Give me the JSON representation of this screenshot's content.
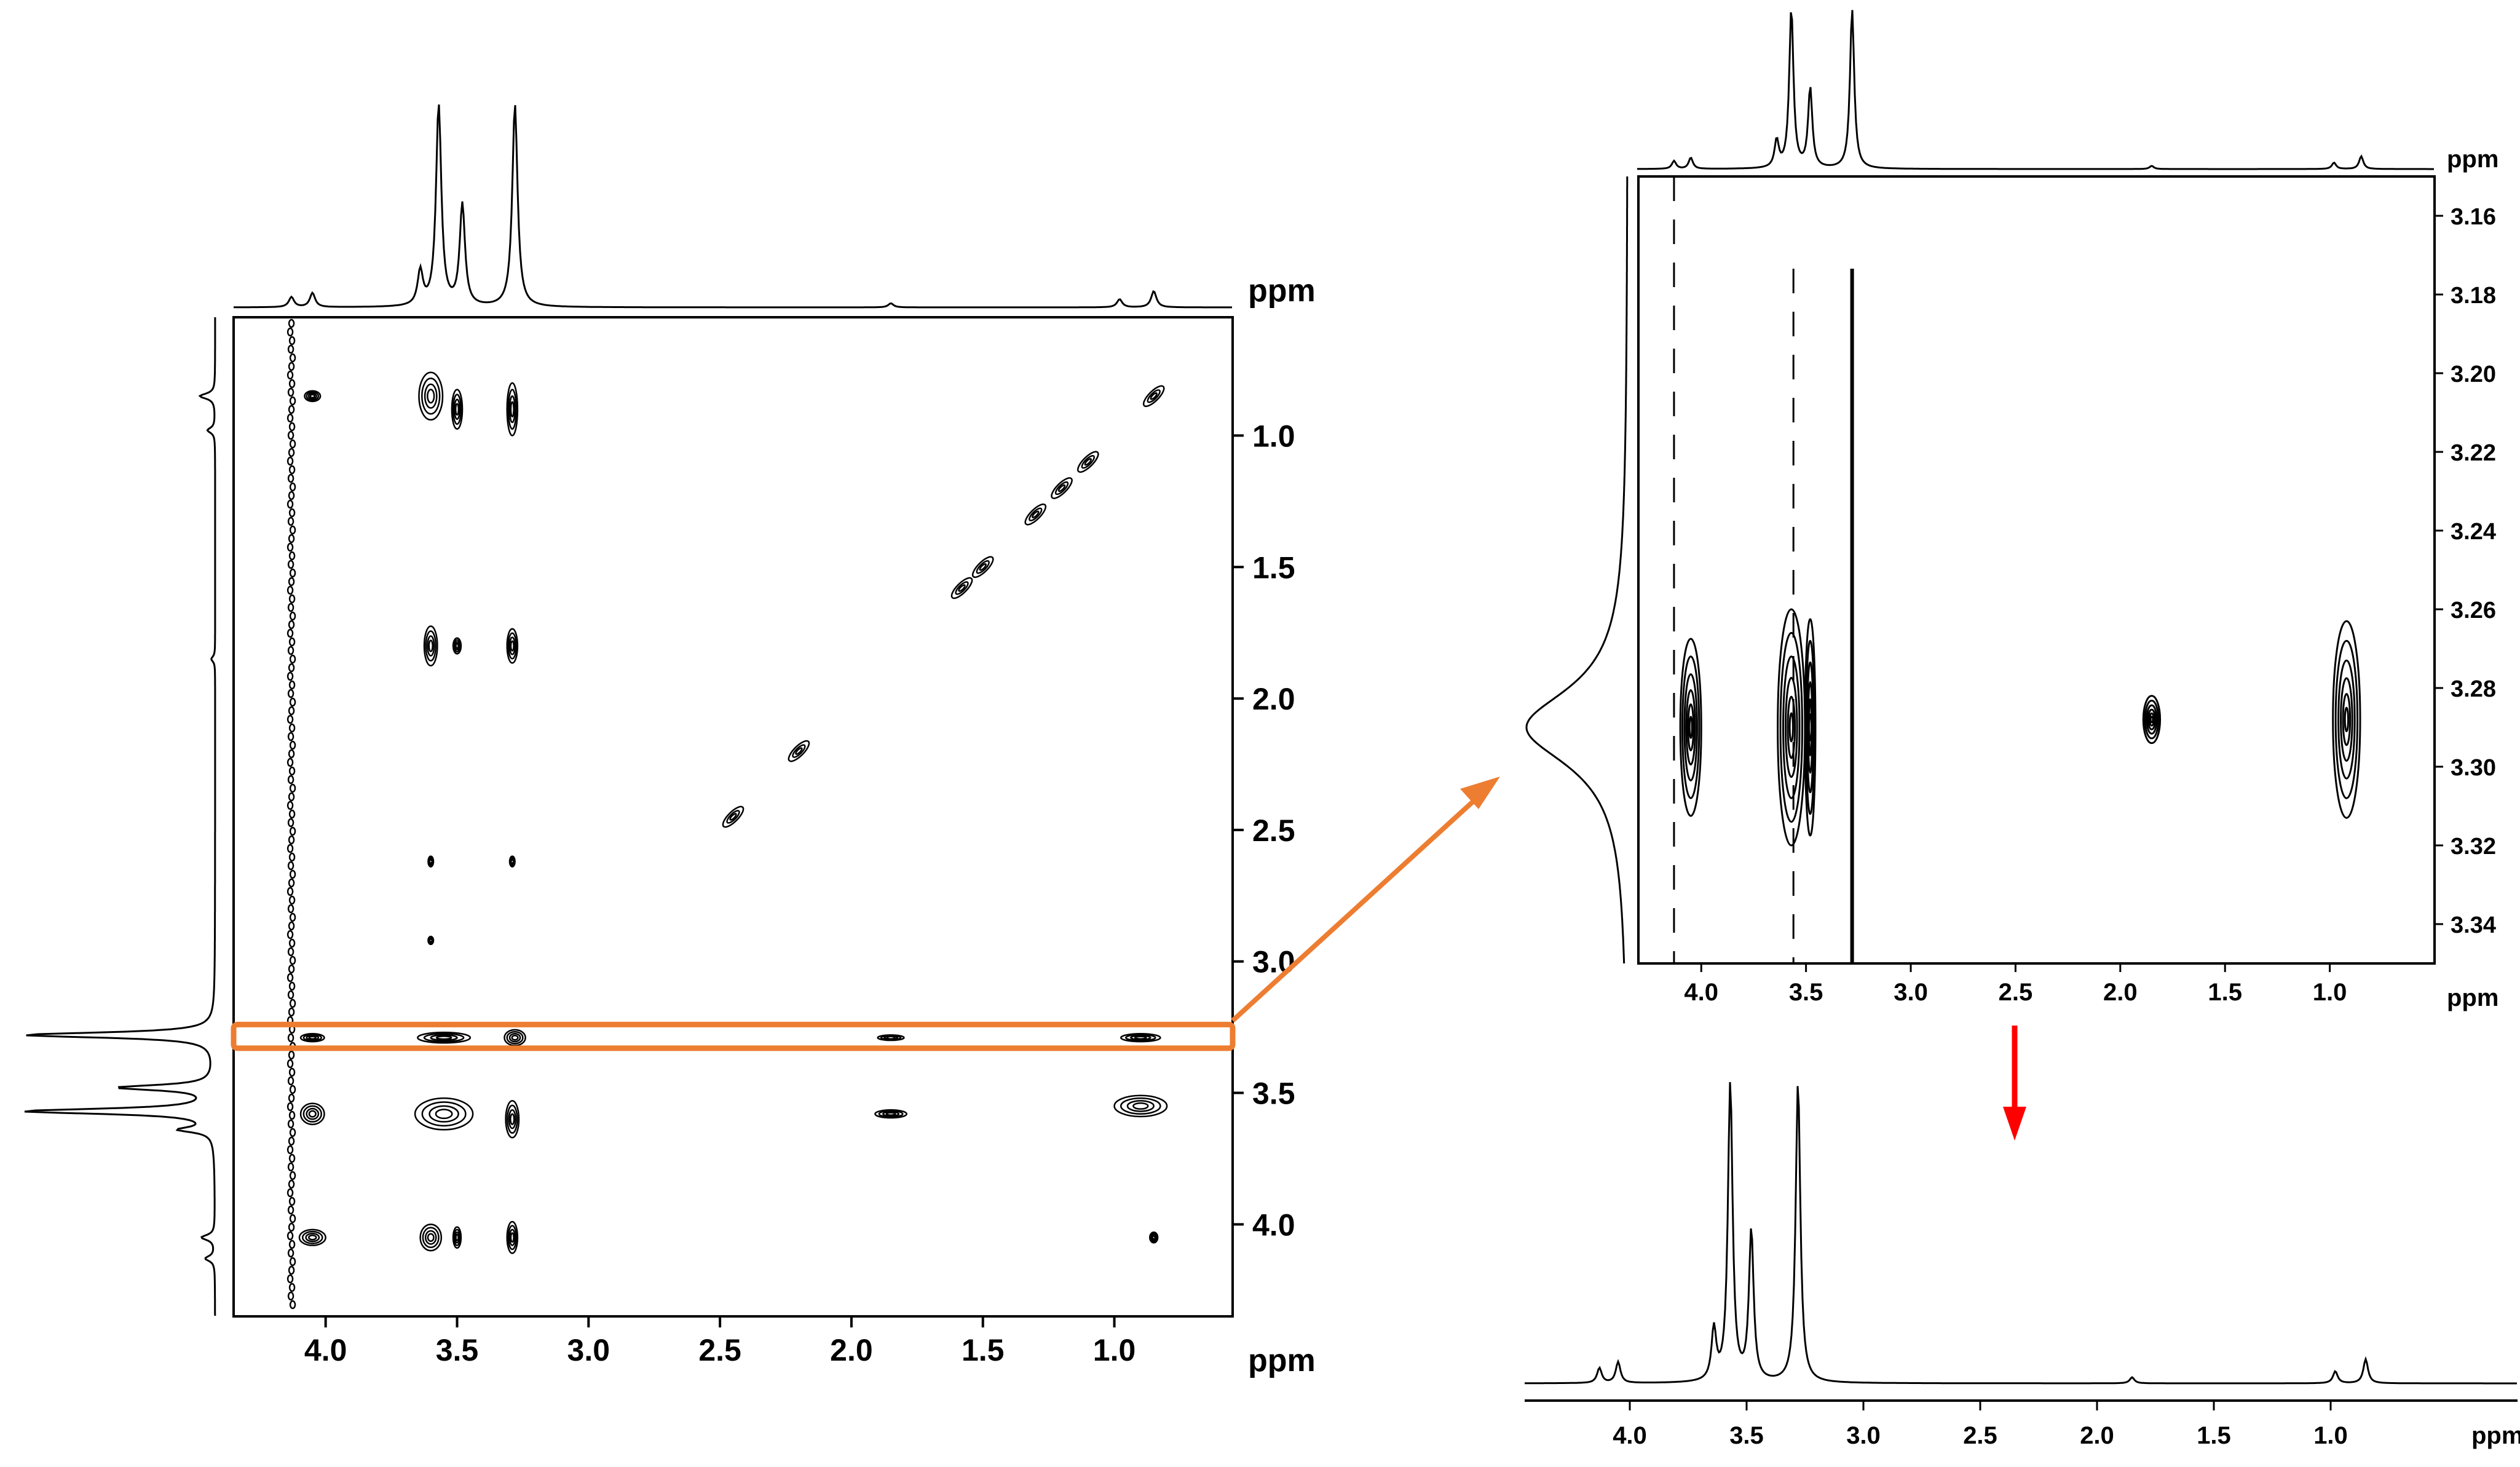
{
  "figure": {
    "unit_label": "ppm"
  },
  "colors": {
    "ink": "#000000",
    "highlight": "#ED7D31",
    "arrow_down": "#FF0000"
  },
  "chart_data": [
    {
      "id": "full-2d",
      "type": "heatmap",
      "title": "",
      "xlabel": "ppm",
      "ylabel": "ppm",
      "xlim": [
        4.35,
        0.55
      ],
      "ylim": [
        0.55,
        4.35
      ],
      "x_ticks": [
        "4.0",
        "3.5",
        "3.0",
        "2.5",
        "2.0",
        "1.5",
        "1.0"
      ],
      "y_ticks": [
        "1.0",
        "1.5",
        "2.0",
        "2.5",
        "3.0",
        "3.5",
        "4.0"
      ],
      "grid": false,
      "highlight_row_ppm": [
        3.24,
        3.33
      ],
      "cross_peaks": [
        {
          "x": 4.05,
          "y": 0.85,
          "w": 0.06,
          "h": 0.04
        },
        {
          "x": 3.6,
          "y": 0.85,
          "w": 0.09,
          "h": 0.18
        },
        {
          "x": 3.5,
          "y": 0.9,
          "w": 0.04,
          "h": 0.15
        },
        {
          "x": 3.29,
          "y": 0.9,
          "w": 0.04,
          "h": 0.2
        },
        {
          "x": 3.6,
          "y": 1.8,
          "w": 0.05,
          "h": 0.15
        },
        {
          "x": 3.5,
          "y": 1.8,
          "w": 0.03,
          "h": 0.06
        },
        {
          "x": 3.29,
          "y": 1.8,
          "w": 0.04,
          "h": 0.13
        },
        {
          "x": 3.6,
          "y": 2.62,
          "w": 0.02,
          "h": 0.04
        },
        {
          "x": 3.29,
          "y": 2.62,
          "w": 0.02,
          "h": 0.04
        },
        {
          "x": 3.6,
          "y": 2.92,
          "w": 0.02,
          "h": 0.03
        },
        {
          "x": 4.05,
          "y": 3.29,
          "w": 0.09,
          "h": 0.03
        },
        {
          "x": 3.55,
          "y": 3.29,
          "w": 0.2,
          "h": 0.04
        },
        {
          "x": 3.28,
          "y": 3.29,
          "w": 0.08,
          "h": 0.06
        },
        {
          "x": 1.85,
          "y": 3.29,
          "w": 0.1,
          "h": 0.02
        },
        {
          "x": 0.9,
          "y": 3.29,
          "w": 0.15,
          "h": 0.03
        },
        {
          "x": 4.05,
          "y": 3.58,
          "w": 0.09,
          "h": 0.08
        },
        {
          "x": 3.55,
          "y": 3.58,
          "w": 0.22,
          "h": 0.12
        },
        {
          "x": 3.29,
          "y": 3.6,
          "w": 0.05,
          "h": 0.14
        },
        {
          "x": 1.85,
          "y": 3.58,
          "w": 0.12,
          "h": 0.03
        },
        {
          "x": 0.9,
          "y": 3.55,
          "w": 0.2,
          "h": 0.08
        },
        {
          "x": 3.6,
          "y": 4.05,
          "w": 0.08,
          "h": 0.1
        },
        {
          "x": 3.5,
          "y": 4.05,
          "w": 0.03,
          "h": 0.08
        },
        {
          "x": 3.29,
          "y": 4.05,
          "w": 0.04,
          "h": 0.12
        },
        {
          "x": 4.05,
          "y": 4.05,
          "w": 0.1,
          "h": 0.06
        },
        {
          "x": 0.85,
          "y": 4.05,
          "w": 0.03,
          "h": 0.04
        }
      ],
      "diagonal_peaks": [
        {
          "x": 0.85,
          "y": 0.85
        },
        {
          "x": 1.1,
          "y": 1.1
        },
        {
          "x": 1.2,
          "y": 1.2
        },
        {
          "x": 1.3,
          "y": 1.3
        },
        {
          "x": 1.5,
          "y": 1.5
        },
        {
          "x": 1.58,
          "y": 1.58
        },
        {
          "x": 2.2,
          "y": 2.2
        },
        {
          "x": 2.45,
          "y": 2.45
        }
      ],
      "vertical_streak_ppm": 4.13
    },
    {
      "id": "zoom-2d",
      "type": "heatmap",
      "title": "",
      "xlabel": "ppm",
      "ylabel": "ppm",
      "xlim": [
        4.3,
        0.5
      ],
      "ylim": [
        3.15,
        3.35
      ],
      "x_ticks": [
        "4.0",
        "3.5",
        "3.0",
        "2.5",
        "2.0",
        "1.5",
        "1.0"
      ],
      "y_ticks": [
        "3.16",
        "3.18",
        "3.20",
        "3.22",
        "3.24",
        "3.26",
        "3.28",
        "3.30",
        "3.32",
        "3.34"
      ],
      "grid": false,
      "cross_peaks": [
        {
          "x": 4.05,
          "y": 3.29,
          "w": 0.1,
          "h": 0.045
        },
        {
          "x": 3.57,
          "y": 3.29,
          "w": 0.13,
          "h": 0.06
        },
        {
          "x": 3.48,
          "y": 3.29,
          "w": 0.05,
          "h": 0.055
        },
        {
          "x": 1.85,
          "y": 3.288,
          "w": 0.08,
          "h": 0.012
        },
        {
          "x": 0.92,
          "y": 3.288,
          "w": 0.13,
          "h": 0.05
        }
      ],
      "vertical_streaks_ppm": [
        4.13,
        3.56,
        3.28
      ]
    },
    {
      "id": "row-slice",
      "type": "line",
      "title": "",
      "xlabel": "ppm",
      "ylabel": "",
      "xlim": [
        4.45,
        0.2
      ],
      "x_ticks": [
        "4.0",
        "3.5",
        "3.0",
        "2.5",
        "2.0",
        "1.5",
        "1.0"
      ],
      "peaks": [
        {
          "ppm": 4.13,
          "height": 0.05
        },
        {
          "ppm": 4.05,
          "height": 0.07
        },
        {
          "ppm": 3.64,
          "height": 0.17
        },
        {
          "ppm": 3.57,
          "height": 1.0
        },
        {
          "ppm": 3.48,
          "height": 0.5
        },
        {
          "ppm": 3.28,
          "height": 1.0
        },
        {
          "ppm": 1.85,
          "height": 0.02
        },
        {
          "ppm": 0.98,
          "height": 0.04
        },
        {
          "ppm": 0.85,
          "height": 0.08
        }
      ]
    }
  ]
}
